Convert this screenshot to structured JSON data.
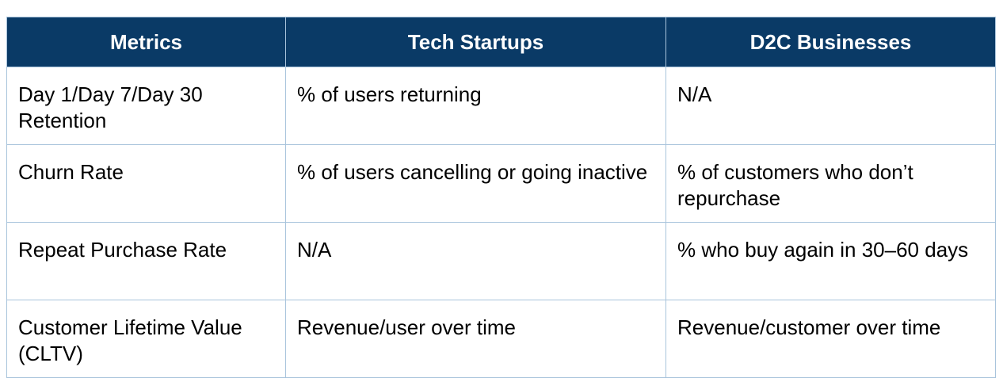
{
  "table": {
    "headers": [
      "Metrics",
      "Tech Startups",
      "D2C Businesses"
    ],
    "rows": [
      [
        "Day 1/Day 7/Day 30 Retention",
        "% of users returning",
        "N/A"
      ],
      [
        "Churn Rate",
        "% of users cancelling or going inactive",
        "% of customers who don’t repurchase"
      ],
      [
        "Repeat Purchase Rate",
        "N/A",
        "% who buy again in 30–60 days"
      ],
      [
        "Customer Lifetime Value (CLTV)",
        "Revenue/user over time",
        "Revenue/customer over time"
      ]
    ]
  },
  "colors": {
    "header_bg": "#0a3a66",
    "header_text": "#ffffff",
    "border": "#a9c4dc",
    "cell_text": "#000000"
  }
}
